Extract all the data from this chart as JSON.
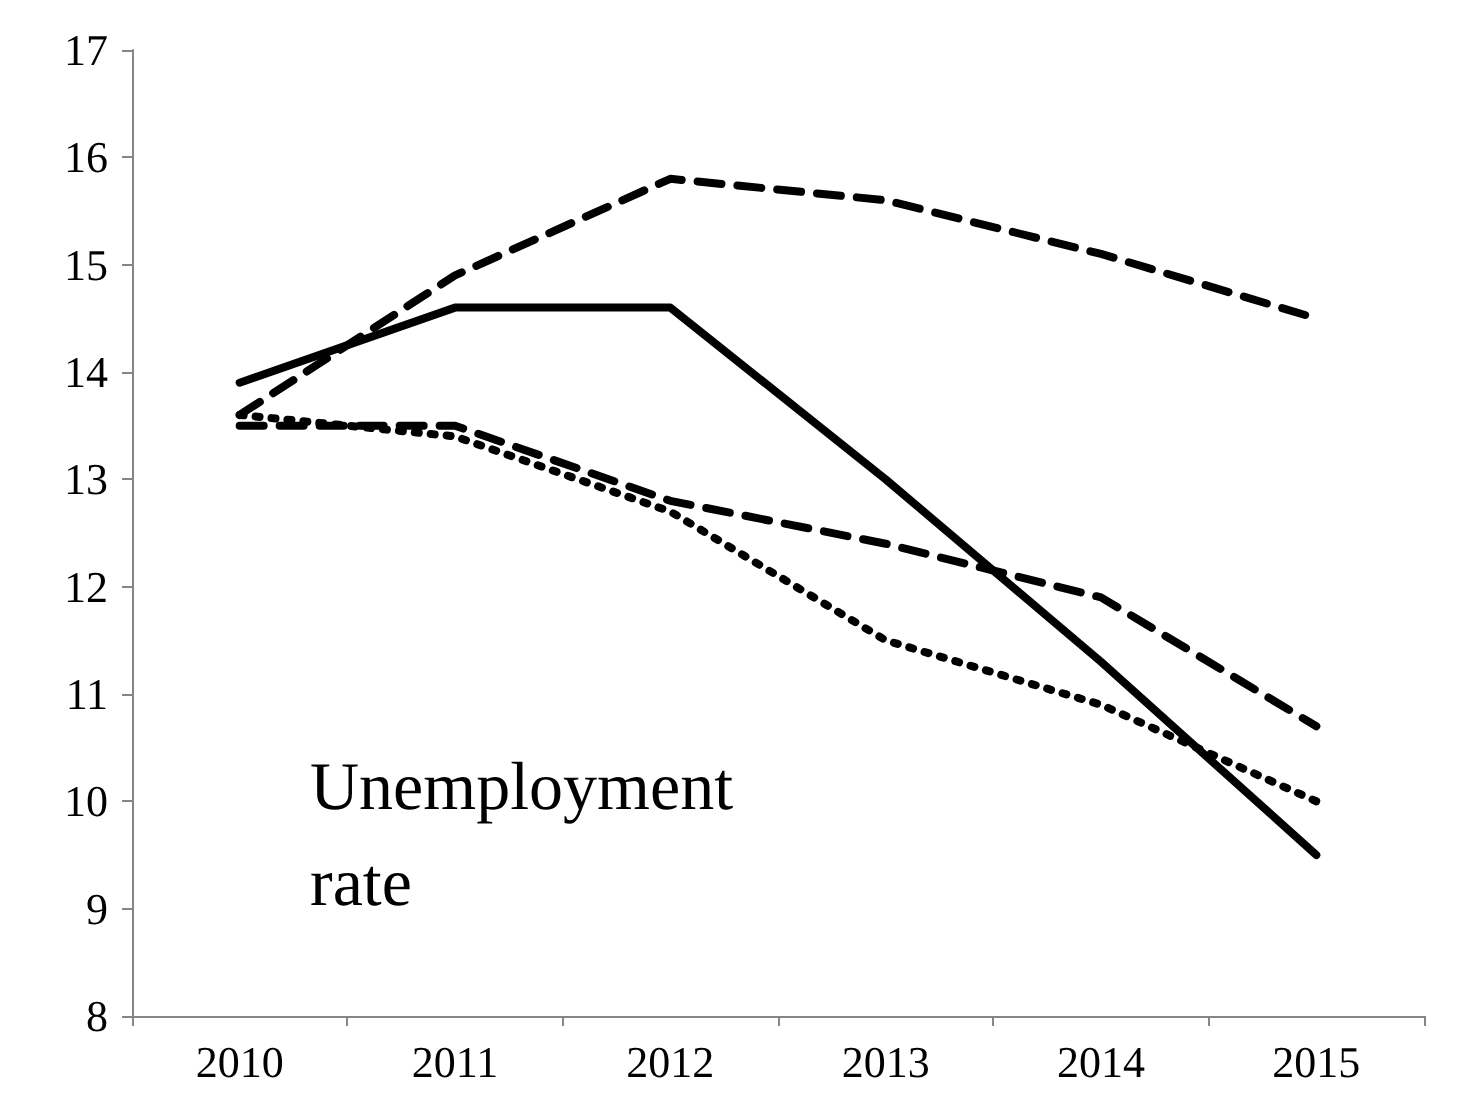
{
  "chart_data": {
    "type": "line",
    "categories": [
      "2010",
      "2011",
      "2012",
      "2013",
      "2014",
      "2015"
    ],
    "series": [
      {
        "color": "#000000",
        "line_style": "solid",
        "values": [
          13.9,
          14.6,
          14.6,
          13.0,
          11.3,
          9.5
        ]
      },
      {
        "color": "#000000",
        "line_style": "dashed",
        "values": [
          13.6,
          14.9,
          15.8,
          15.6,
          15.1,
          14.5
        ]
      },
      {
        "color": "#000000",
        "line_style": "dashed",
        "values": [
          13.5,
          13.5,
          12.8,
          12.4,
          11.9,
          10.7
        ]
      },
      {
        "color": "#000000",
        "line_style": "dotted",
        "values": [
          13.6,
          13.4,
          12.7,
          11.5,
          10.9,
          10.0
        ]
      }
    ],
    "ylim": [
      8,
      17
    ],
    "yticks": [
      8,
      9,
      10,
      11,
      12,
      13,
      14,
      15,
      16,
      17
    ],
    "annotations": [
      "Unemployment rate"
    ],
    "grid": false,
    "marker": "none"
  }
}
